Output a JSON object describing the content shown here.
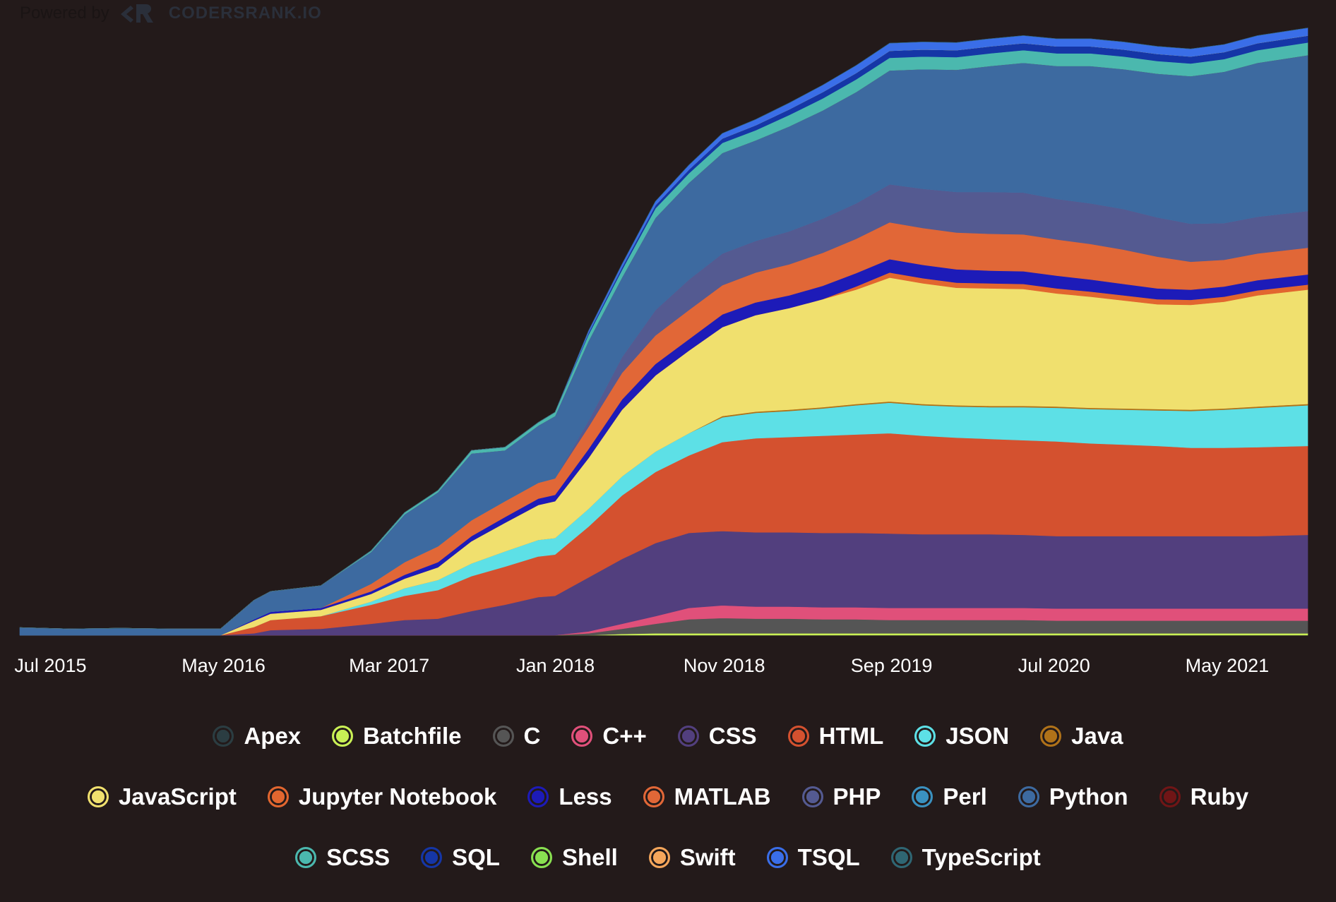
{
  "powered_by": {
    "text": "Powered by",
    "brand": "CODERSRANK.IO"
  },
  "chart_data": {
    "type": "area",
    "stacked": true,
    "title": "",
    "xlabel": "",
    "ylabel": "",
    "x_ticks": [
      "Jul 2015",
      "May 2016",
      "Mar 2017",
      "Jan 2018",
      "Nov 2018",
      "Sep 2019",
      "Jul 2020",
      "May 2021"
    ],
    "x_range": [
      "2015-05",
      "2021-10"
    ],
    "y_range": [
      0,
      100
    ],
    "y_axis_visible": false,
    "grid": false,
    "legend_position": "bottom",
    "x": [
      "2015-05",
      "2015-08",
      "2015-11",
      "2016-02",
      "2016-05",
      "2016-07",
      "2016-08",
      "2016-11",
      "2017-02",
      "2017-04",
      "2017-06",
      "2017-08",
      "2017-10",
      "2017-12",
      "2018-01",
      "2018-03",
      "2018-05",
      "2018-07",
      "2018-09",
      "2018-11",
      "2019-01",
      "2019-03",
      "2019-05",
      "2019-07",
      "2019-09",
      "2019-11",
      "2020-01",
      "2020-03",
      "2020-05",
      "2020-07",
      "2020-09",
      "2020-11",
      "2021-01",
      "2021-03",
      "2021-05",
      "2021-07",
      "2021-10"
    ],
    "series": [
      {
        "name": "Apex",
        "color": "#2b3d42",
        "values": [
          0,
          0,
          0,
          0,
          0,
          0,
          0,
          0,
          0,
          0,
          0,
          0,
          0,
          0,
          0,
          0,
          0,
          0,
          0,
          0,
          0,
          0,
          0,
          0,
          0,
          0,
          0,
          0,
          0,
          0,
          0,
          0,
          0,
          0,
          0,
          0,
          0
        ]
      },
      {
        "name": "Batchfile",
        "color": "#c9f055",
        "values": [
          0,
          0,
          0,
          0,
          0,
          0,
          0,
          0,
          0,
          0,
          0,
          0,
          0,
          0,
          0,
          0,
          0.2,
          0.3,
          0.3,
          0.3,
          0.3,
          0.3,
          0.3,
          0.3,
          0.3,
          0.3,
          0.3,
          0.3,
          0.3,
          0.3,
          0.3,
          0.3,
          0.3,
          0.3,
          0.3,
          0.3,
          0.3
        ]
      },
      {
        "name": "C",
        "color": "#555555",
        "values": [
          0,
          0,
          0,
          0,
          0,
          0,
          0,
          0,
          0,
          0,
          0,
          0,
          0,
          0,
          0,
          0.3,
          0.8,
          1.5,
          2.2,
          2.4,
          2.3,
          2.3,
          2.2,
          2.2,
          2.1,
          2.1,
          2.1,
          2.1,
          2.1,
          2.0,
          2.0,
          2.0,
          2.0,
          2.0,
          2.0,
          2.0,
          2.0
        ]
      },
      {
        "name": "C++",
        "color": "#e0507a",
        "values": [
          0,
          0,
          0,
          0,
          0,
          0,
          0,
          0,
          0,
          0,
          0,
          0,
          0,
          0,
          0,
          0.3,
          0.8,
          1.2,
          1.8,
          2.0,
          1.9,
          1.9,
          1.9,
          1.9,
          1.9,
          1.9,
          1.9,
          1.9,
          1.9,
          1.9,
          1.9,
          1.9,
          1.9,
          1.9,
          1.9,
          1.9,
          1.9
        ]
      },
      {
        "name": "CSS",
        "color": "#523f7e",
        "values": [
          0,
          0,
          0,
          0,
          0,
          0.3,
          0.8,
          1.0,
          1.8,
          2.4,
          2.6,
          3.8,
          4.8,
          6.0,
          6.2,
          8.5,
          10.2,
          11.5,
          11.8,
          11.7,
          11.7,
          11.7,
          11.7,
          11.7,
          11.7,
          11.6,
          11.6,
          11.6,
          11.5,
          11.4,
          11.4,
          11.4,
          11.4,
          11.4,
          11.4,
          11.4,
          11.6
        ]
      },
      {
        "name": "HTML",
        "color": "#d4512f",
        "values": [
          0,
          0,
          0,
          0,
          0,
          1.0,
          1.6,
          2.0,
          3.0,
          3.8,
          4.5,
          5.5,
          6.0,
          6.4,
          6.5,
          8.0,
          10.0,
          11.2,
          12.2,
          14.0,
          14.8,
          15.0,
          15.3,
          15.5,
          15.8,
          15.5,
          15.2,
          15.0,
          14.9,
          14.9,
          14.6,
          14.4,
          14.2,
          13.9,
          13.9,
          14.0,
          14.0
        ]
      },
      {
        "name": "JSON",
        "color": "#5de0e6",
        "values": [
          0,
          0,
          0,
          0,
          0,
          0,
          0,
          0,
          0.5,
          1.2,
          1.6,
          2.0,
          2.4,
          2.6,
          2.6,
          2.8,
          3.0,
          3.2,
          3.5,
          3.9,
          4.0,
          4.1,
          4.3,
          4.6,
          4.8,
          4.8,
          4.9,
          5.0,
          5.2,
          5.3,
          5.4,
          5.5,
          5.6,
          5.8,
          6.0,
          6.2,
          6.4
        ]
      },
      {
        "name": "Java",
        "color": "#b07219",
        "values": [
          0,
          0,
          0,
          0,
          0,
          0,
          0,
          0,
          0,
          0,
          0,
          0,
          0,
          0,
          0,
          0,
          0,
          0,
          0,
          0.2,
          0.2,
          0.2,
          0.2,
          0.2,
          0.2,
          0.2,
          0.2,
          0.2,
          0.2,
          0.2,
          0.2,
          0.2,
          0.2,
          0.2,
          0.2,
          0.2,
          0.2
        ]
      },
      {
        "name": "JavaScript",
        "color": "#f0e06e",
        "values": [
          0,
          0,
          0,
          0,
          0,
          1.0,
          1.0,
          1.0,
          1.2,
          1.5,
          2.0,
          3.5,
          4.5,
          5.5,
          5.8,
          8.0,
          10.5,
          12.0,
          13.0,
          14.0,
          15.2,
          16.0,
          17.0,
          18.0,
          19.5,
          19.0,
          18.5,
          18.5,
          18.4,
          17.8,
          17.5,
          17.0,
          16.5,
          16.5,
          16.8,
          17.5,
          18.0
        ]
      },
      {
        "name": "Jupyter Notebook",
        "color": "#e2662f",
        "values": [
          0,
          0,
          0,
          0,
          0,
          0,
          0,
          0,
          0,
          0,
          0,
          0,
          0,
          0,
          0,
          0,
          0,
          0,
          0,
          0,
          0,
          0,
          0,
          0.5,
          0.8,
          0.8,
          0.8,
          0.8,
          0.8,
          0.8,
          0.8,
          0.8,
          0.8,
          0.8,
          0.8,
          0.8,
          0.8
        ]
      },
      {
        "name": "Less",
        "color": "#1d1bb8",
        "values": [
          0,
          0,
          0,
          0,
          0,
          0.2,
          0.3,
          0.3,
          0.4,
          0.6,
          0.8,
          0.8,
          0.9,
          1.0,
          1.0,
          1.4,
          1.6,
          1.8,
          1.8,
          2.0,
          2.0,
          2.0,
          2.1,
          2.1,
          2.1,
          2.1,
          2.1,
          2.0,
          2.0,
          2.0,
          1.9,
          1.8,
          1.7,
          1.6,
          1.6,
          1.6,
          1.6
        ]
      },
      {
        "name": "MATLAB",
        "color": "#e16737",
        "values": [
          0,
          0,
          0,
          0,
          0,
          0,
          0,
          0,
          1.2,
          2.0,
          2.5,
          2.5,
          2.5,
          2.5,
          2.6,
          3.5,
          4.2,
          4.5,
          4.6,
          4.6,
          4.7,
          4.9,
          5.2,
          5.4,
          5.8,
          5.8,
          5.8,
          5.8,
          5.8,
          5.7,
          5.6,
          5.4,
          5.0,
          4.4,
          4.2,
          4.2,
          4.2
        ]
      },
      {
        "name": "PHP",
        "color": "#545a91",
        "values": [
          0,
          0,
          0,
          0,
          0,
          0,
          0,
          0,
          0,
          0,
          0,
          0,
          0,
          0,
          0,
          1.0,
          2.5,
          4.0,
          4.8,
          5.0,
          5.0,
          5.2,
          5.4,
          5.6,
          6.0,
          6.2,
          6.4,
          6.6,
          6.6,
          6.4,
          6.4,
          6.4,
          6.2,
          6.0,
          5.8,
          5.8,
          5.8
        ]
      },
      {
        "name": "Perl",
        "color": "#3a91c0",
        "values": [
          0,
          0,
          0,
          0,
          0,
          0,
          0,
          0,
          0,
          0,
          0,
          0,
          0,
          0,
          0,
          0,
          0,
          0,
          0,
          0,
          0,
          0,
          0,
          0,
          0,
          0,
          0,
          0,
          0,
          0,
          0,
          0,
          0,
          0,
          0,
          0,
          0
        ]
      },
      {
        "name": "Python",
        "color": "#3d6aa0",
        "values": [
          1.2,
          1.0,
          1.1,
          1.0,
          1.0,
          3.0,
          3.2,
          3.5,
          5.0,
          7.5,
          8.5,
          10.5,
          8.0,
          9.0,
          9.8,
          12.5,
          12.5,
          14.5,
          15.2,
          15.8,
          15.8,
          16.5,
          17.0,
          17.5,
          17.9,
          18.8,
          19.2,
          19.8,
          20.4,
          20.9,
          21.6,
          22.0,
          22.6,
          23.2,
          23.8,
          24.2,
          24.5
        ]
      },
      {
        "name": "Ruby",
        "color": "#701516",
        "values": [
          0,
          0,
          0,
          0,
          0,
          0,
          0,
          0,
          0,
          0,
          0,
          0,
          0,
          0,
          0,
          0,
          0,
          0,
          0,
          0,
          0,
          0,
          0,
          0,
          0,
          0,
          0,
          0,
          0,
          0,
          0,
          0,
          0,
          0,
          0,
          0,
          0
        ]
      },
      {
        "name": "SCSS",
        "color": "#4bb8ae",
        "values": [
          0,
          0,
          0,
          0,
          0,
          0,
          0,
          0,
          0.2,
          0.3,
          0.3,
          0.5,
          0.5,
          0.5,
          0.6,
          1.0,
          1.2,
          1.5,
          1.5,
          1.6,
          1.6,
          1.8,
          1.9,
          2.0,
          2.0,
          2.0,
          2.0,
          2.0,
          2.0,
          2.0,
          2.0,
          2.0,
          2.0,
          2.0,
          2.0,
          2.0,
          2.0
        ]
      },
      {
        "name": "SQL",
        "color": "#1536a6",
        "values": [
          0,
          0,
          0,
          0,
          0,
          0,
          0,
          0,
          0,
          0,
          0,
          0,
          0,
          0,
          0,
          0.3,
          0.4,
          0.5,
          0.6,
          0.7,
          0.8,
          0.9,
          1.0,
          1.0,
          1.1,
          1.1,
          1.1,
          1.1,
          1.1,
          1.1,
          1.1,
          1.1,
          1.1,
          1.1,
          1.1,
          1.1,
          1.1
        ]
      },
      {
        "name": "Shell",
        "color": "#89e051",
        "values": [
          0,
          0,
          0,
          0,
          0,
          0,
          0,
          0,
          0,
          0,
          0,
          0,
          0,
          0,
          0,
          0,
          0,
          0,
          0,
          0,
          0,
          0,
          0,
          0,
          0,
          0,
          0,
          0,
          0,
          0,
          0,
          0,
          0,
          0,
          0,
          0,
          0
        ]
      },
      {
        "name": "Swift",
        "color": "#f5a65b",
        "values": [
          0,
          0,
          0,
          0,
          0,
          0,
          0,
          0,
          0,
          0,
          0,
          0,
          0,
          0,
          0,
          0,
          0,
          0,
          0,
          0,
          0,
          0,
          0,
          0,
          0,
          0,
          0,
          0,
          0,
          0,
          0,
          0,
          0,
          0,
          0,
          0,
          0
        ]
      },
      {
        "name": "TSQL",
        "color": "#3a6ee8",
        "values": [
          0,
          0,
          0,
          0,
          0,
          0,
          0,
          0,
          0,
          0,
          0,
          0,
          0,
          0,
          0,
          0.3,
          0.5,
          0.6,
          0.7,
          0.8,
          0.9,
          1.0,
          1.1,
          1.2,
          1.2,
          1.2,
          1.2,
          1.2,
          1.2,
          1.2,
          1.2,
          1.2,
          1.2,
          1.2,
          1.2,
          1.2,
          1.2
        ]
      },
      {
        "name": "TypeScript",
        "color": "#2f6673",
        "values": [
          0,
          0,
          0,
          0,
          0,
          0,
          0,
          0,
          0,
          0,
          0,
          0,
          0,
          0,
          0,
          0,
          0,
          0,
          0,
          0,
          0,
          0,
          0,
          0,
          0,
          0,
          0,
          0,
          0,
          0,
          0,
          0,
          0,
          0,
          0,
          0,
          0
        ]
      }
    ]
  }
}
